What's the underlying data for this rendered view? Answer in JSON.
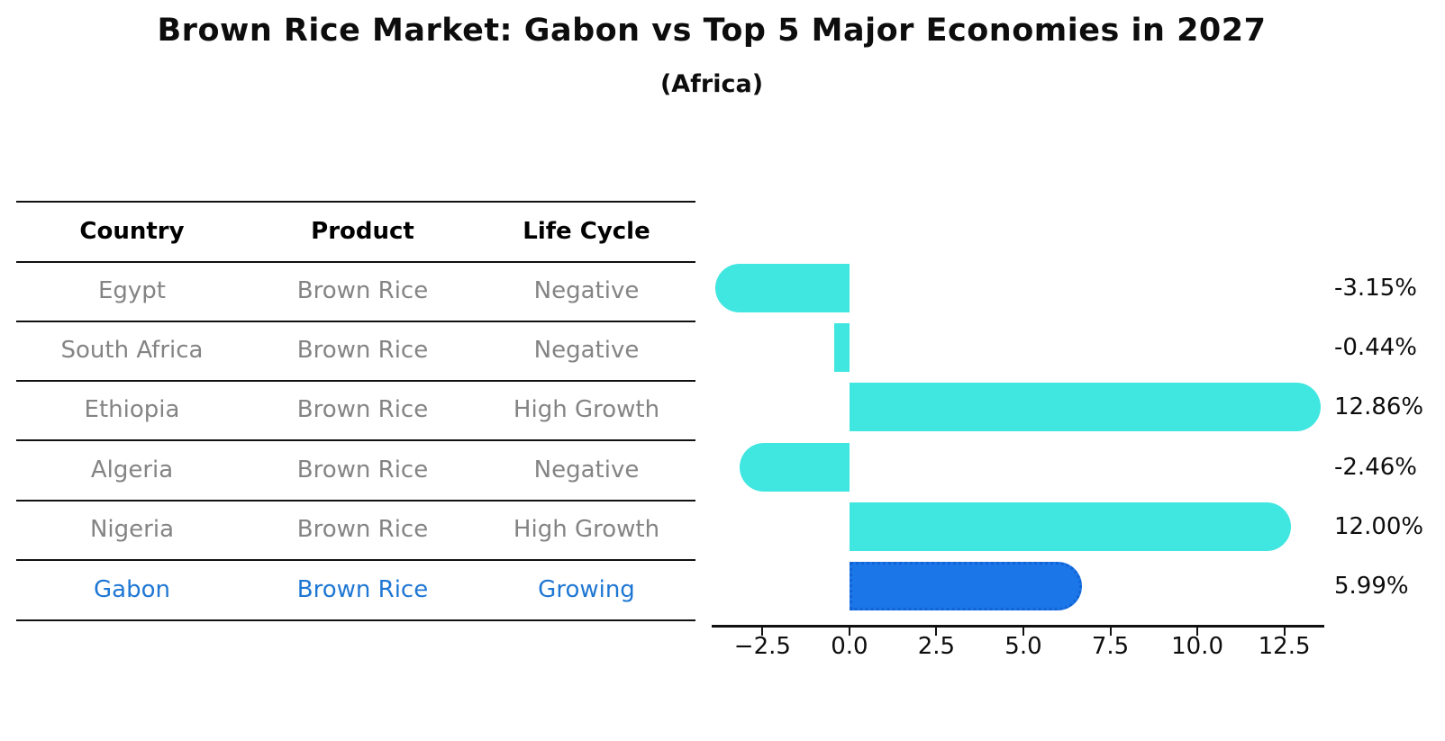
{
  "title": "Brown Rice Market: Gabon vs Top 5 Major Economies in 2027",
  "subtitle": "(Africa)",
  "table": {
    "headers": {
      "country": "Country",
      "product": "Product",
      "life_cycle": "Life Cycle"
    },
    "rows": [
      {
        "country": "Egypt",
        "product": "Brown Rice",
        "life_cycle": "Negative",
        "highlight": false
      },
      {
        "country": "South Africa",
        "product": "Brown Rice",
        "life_cycle": "Negative",
        "highlight": false
      },
      {
        "country": "Ethiopia",
        "product": "Brown Rice",
        "life_cycle": "High Growth",
        "highlight": false
      },
      {
        "country": "Algeria",
        "product": "Brown Rice",
        "life_cycle": "Negative",
        "highlight": false
      },
      {
        "country": "Nigeria",
        "product": "Brown Rice",
        "life_cycle": "High Growth",
        "highlight": false
      },
      {
        "country": "Gabon",
        "product": "Brown Rice",
        "life_cycle": "Growing",
        "highlight": true
      }
    ]
  },
  "chart_data": {
    "type": "bar",
    "orientation": "horizontal",
    "categories": [
      "Egypt",
      "South Africa",
      "Ethiopia",
      "Algeria",
      "Nigeria",
      "Gabon"
    ],
    "values": [
      -3.15,
      -0.44,
      12.86,
      -2.46,
      12.0,
      5.99
    ],
    "value_labels": [
      "-3.15%",
      "-0.44%",
      "12.86%",
      "-2.46%",
      "12.00%",
      "5.99%"
    ],
    "x_ticks": [
      -2.5,
      0.0,
      2.5,
      5.0,
      7.5,
      10.0,
      12.5
    ],
    "x_tick_labels": [
      "−2.5",
      "0.0",
      "2.5",
      "5.0",
      "7.5",
      "10.0",
      "12.5"
    ],
    "xlim": [
      -3.96,
      13.65
    ],
    "highlight_index": 5,
    "grid": false,
    "legend": false,
    "xlabel": "",
    "ylabel": ""
  },
  "colors": {
    "bar": "#40E6E0",
    "highlight_bar": "#1B76E8",
    "highlight_border": "#1263D6",
    "highlight_text": "#1F77D4",
    "row_text": "#848484",
    "header_text": "#000000",
    "axis": "#111111"
  }
}
